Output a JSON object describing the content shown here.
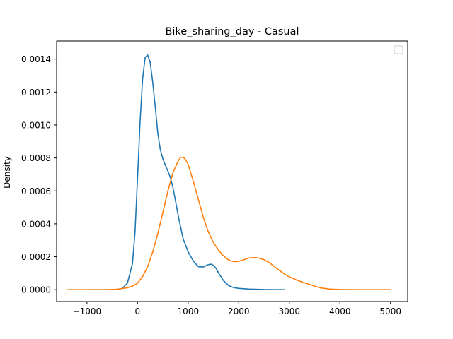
{
  "chart_data": {
    "type": "line",
    "title": "Bike_sharing_day - Casual",
    "xlabel": "",
    "ylabel": "Density",
    "xlim": [
      -1600,
      5340
    ],
    "ylim": [
      -7.2e-05,
      0.00151
    ],
    "x_ticks": [
      -1000,
      0,
      1000,
      2000,
      3000,
      4000,
      5000
    ],
    "x_tick_labels": [
      "−1000",
      "0",
      "1000",
      "2000",
      "3000",
      "4000",
      "5000"
    ],
    "y_ticks": [
      0,
      0.0002,
      0.0004,
      0.0006,
      0.0008,
      0.001,
      0.0012,
      0.0014
    ],
    "y_tick_labels": [
      "0.0000",
      "0.0002",
      "0.0004",
      "0.0006",
      "0.0008",
      "0.0010",
      "0.0012",
      "0.0014"
    ],
    "grid": false,
    "legend": {
      "position": "top-right",
      "entries": []
    },
    "series": [
      {
        "color": "#1f77b4",
        "x": [
          -1000,
          -600,
          -400,
          -300,
          -200,
          -100,
          -50,
          0,
          50,
          100,
          150,
          200,
          250,
          300,
          350,
          400,
          450,
          500,
          550,
          600,
          650,
          700,
          750,
          800,
          900,
          1000,
          1100,
          1200,
          1300,
          1400,
          1450,
          1500,
          1550,
          1600,
          1700,
          1800,
          1900,
          2000,
          2200,
          2500,
          2900
        ],
        "y": [
          0,
          0,
          1e-06,
          8e-06,
          4e-05,
          0.00016,
          0.00035,
          0.00068,
          0.00102,
          0.00128,
          0.00141,
          0.001425,
          0.00138,
          0.00126,
          0.00111,
          0.00095,
          0.00085,
          0.000795,
          0.000755,
          0.00072,
          0.00068,
          0.00062,
          0.00054,
          0.000455,
          0.00031,
          0.00023,
          0.000175,
          0.00014,
          0.000138,
          0.000152,
          0.000155,
          0.000148,
          0.00013,
          0.000102,
          5.5e-05,
          2.5e-05,
          1.3e-05,
          8e-06,
          4e-06,
          1e-06,
          0
        ]
      },
      {
        "color": "#ff7f0e",
        "x": [
          -1400,
          -1000,
          -600,
          -400,
          -200,
          -100,
          0,
          100,
          200,
          300,
          400,
          500,
          600,
          700,
          800,
          850,
          900,
          950,
          1000,
          1100,
          1200,
          1300,
          1400,
          1500,
          1600,
          1700,
          1800,
          1900,
          2000,
          2100,
          2200,
          2300,
          2400,
          2500,
          2600,
          2700,
          2800,
          2900,
          3000,
          3200,
          3400,
          3600,
          3800,
          4000,
          4500,
          5000
        ],
        "y": [
          0,
          0,
          5e-07,
          3e-06,
          1.2e-05,
          2.2e-05,
          4e-05,
          8e-05,
          0.00014,
          0.00023,
          0.00034,
          0.00047,
          0.0006,
          0.00071,
          0.00078,
          0.000803,
          0.000805,
          0.00079,
          0.00076,
          0.00066,
          0.00055,
          0.00044,
          0.00035,
          0.000285,
          0.00024,
          0.000205,
          0.00018,
          0.00017,
          0.000172,
          0.000182,
          0.000192,
          0.000195,
          0.000192,
          0.000182,
          0.000165,
          0.000142,
          0.000118,
          9.6e-05,
          7.8e-05,
          5.2e-05,
          3.2e-05,
          1.2e-05,
          4e-06,
          1e-06,
          0,
          0
        ]
      }
    ]
  }
}
